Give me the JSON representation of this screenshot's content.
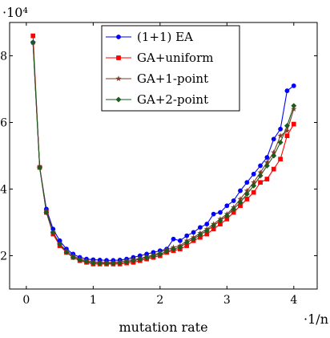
{
  "chart_data": {
    "type": "line",
    "xlabel": "mutation rate",
    "x_scale_label": "·1/n",
    "y_scale_label": "·10⁴",
    "xlim": [
      -0.25,
      4.35
    ],
    "ylim": [
      10000,
      90000
    ],
    "xticks": [
      0,
      1,
      2,
      3,
      4
    ],
    "xtick_labels": [
      "0",
      "1",
      "2",
      "3",
      "4"
    ],
    "yticks": [
      20000,
      40000,
      60000,
      80000
    ],
    "ytick_labels": [
      "2",
      "4",
      "6",
      "8"
    ],
    "legend_position": "top-center",
    "grid": false,
    "x": [
      0.1,
      0.2,
      0.3,
      0.4,
      0.5,
      0.6,
      0.7,
      0.8,
      0.9,
      1.0,
      1.1,
      1.2,
      1.3,
      1.4,
      1.5,
      1.6,
      1.7,
      1.8,
      1.9,
      2.0,
      2.1,
      2.2,
      2.3,
      2.4,
      2.5,
      2.6,
      2.7,
      2.8,
      2.9,
      3.0,
      3.1,
      3.2,
      3.3,
      3.4,
      3.5,
      3.6,
      3.7,
      3.8,
      3.9,
      4.0
    ],
    "series": [
      {
        "name": "(1+1) EA",
        "color": "#0000ff",
        "marker": "circle",
        "values": [
          84000,
          46500,
          34000,
          28000,
          24500,
          22000,
          20500,
          19500,
          19000,
          18800,
          18700,
          18600,
          18600,
          18700,
          19000,
          19500,
          20000,
          20500,
          21000,
          21500,
          22000,
          25000,
          24500,
          26000,
          27000,
          28500,
          29500,
          32500,
          33000,
          35000,
          36500,
          39500,
          42000,
          44500,
          47000,
          49500,
          55000,
          58000,
          69500,
          71000
        ]
      },
      {
        "name": "GA+uniform",
        "color": "#ff0000",
        "marker": "square",
        "values": [
          86000,
          46500,
          33000,
          26500,
          23000,
          21000,
          19500,
          18500,
          18000,
          17500,
          17500,
          17500,
          17500,
          17500,
          17800,
          18000,
          18500,
          19000,
          19500,
          20000,
          21000,
          21500,
          22000,
          23000,
          24500,
          25500,
          26500,
          28000,
          29500,
          31000,
          33000,
          35000,
          37000,
          39000,
          42000,
          43000,
          46000,
          49000,
          56000,
          59500
        ]
      },
      {
        "name": "GA+1-point",
        "color": "#7f3a24",
        "marker": "star",
        "values": [
          84000,
          46500,
          33500,
          27000,
          23500,
          21500,
          20000,
          19000,
          18500,
          18200,
          18000,
          18000,
          18000,
          18200,
          18500,
          18800,
          19200,
          19700,
          20200,
          21000,
          21800,
          22500,
          23000,
          24500,
          25500,
          26800,
          28000,
          29500,
          31000,
          32500,
          34500,
          37000,
          39500,
          42000,
          45000,
          48000,
          51000,
          56000,
          57500,
          64000
        ]
      },
      {
        "name": "GA+2-point",
        "color": "#1e5a1e",
        "marker": "diamond",
        "values": [
          84000,
          46500,
          33000,
          27000,
          23500,
          21000,
          19500,
          18700,
          18200,
          17800,
          17700,
          17700,
          17700,
          17800,
          18100,
          18500,
          18900,
          19400,
          19900,
          20500,
          21300,
          22000,
          22500,
          24000,
          25000,
          26300,
          27500,
          29000,
          30500,
          32000,
          34000,
          36000,
          38500,
          41000,
          44000,
          47000,
          50000,
          54000,
          59000,
          65000
        ]
      }
    ]
  }
}
